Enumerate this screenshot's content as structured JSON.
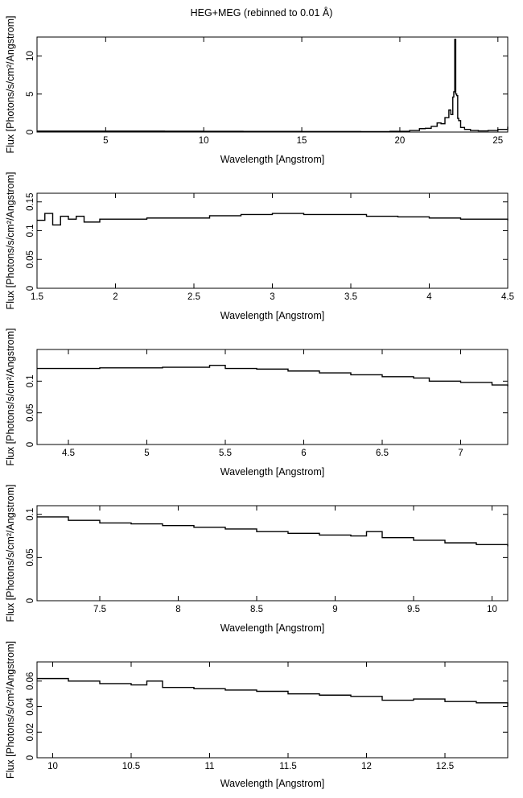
{
  "title": "HEG+MEG (rebinned to 0.01 Å)",
  "chart_data": [
    {
      "type": "line",
      "xlabel": "Wavelength [Angstrom]",
      "ylabel": "Flux [Photons/s/cm²/Angstrom]",
      "xlim": [
        1.5,
        25.5
      ],
      "ylim": [
        0,
        12.5
      ],
      "x_ticks": [
        5,
        10,
        15,
        20,
        25
      ],
      "x_ticklabels": [
        "5",
        "10",
        "15",
        "20",
        "25"
      ],
      "y_ticks": [
        0,
        5,
        10
      ],
      "y_ticklabels": [
        "0",
        "5",
        "10"
      ],
      "series": [
        {
          "x": [
            1.5,
            3,
            5,
            8,
            10,
            12,
            15,
            18,
            19.5,
            20.5,
            21,
            21.3,
            21.6,
            21.9,
            22.1,
            22.3,
            22.5,
            22.6,
            22.7,
            22.75,
            22.8,
            22.85,
            22.9,
            22.95,
            23.0,
            23.1,
            23.3,
            23.6,
            24,
            24.5,
            25,
            25.5
          ],
          "y": [
            0.12,
            0.12,
            0.12,
            0.11,
            0.1,
            0.08,
            0.07,
            0.06,
            0.1,
            0.2,
            0.45,
            0.5,
            0.75,
            1.2,
            1.1,
            1.9,
            2.9,
            2.3,
            4.6,
            5.3,
            12.2,
            5.0,
            4.8,
            1.8,
            1.5,
            0.6,
            0.35,
            0.2,
            0.15,
            0.2,
            0.35,
            0.7
          ]
        }
      ]
    },
    {
      "type": "line",
      "xlabel": "Wavelength [Angstrom]",
      "ylabel": "Flux [Photons/s/cm²/Angstrom]",
      "xlim": [
        1.5,
        4.5
      ],
      "ylim": [
        0,
        0.165
      ],
      "x_ticks": [
        1.5,
        2,
        2.5,
        3,
        3.5,
        4,
        4.5
      ],
      "x_ticklabels": [
        "1.5",
        "2",
        "2.5",
        "3",
        "3.5",
        "4",
        "4.5"
      ],
      "y_ticks": [
        0,
        0.05,
        0.1,
        0.15
      ],
      "y_ticklabels": [
        "0",
        "0.05",
        "0.1",
        "0.15"
      ],
      "series": [
        {
          "x": [
            1.5,
            1.55,
            1.6,
            1.65,
            1.7,
            1.75,
            1.8,
            1.9,
            2.0,
            2.2,
            2.4,
            2.6,
            2.8,
            3.0,
            3.2,
            3.4,
            3.6,
            3.8,
            4.0,
            4.2,
            4.4,
            4.5
          ],
          "y": [
            0.118,
            0.13,
            0.11,
            0.125,
            0.12,
            0.125,
            0.115,
            0.12,
            0.12,
            0.122,
            0.122,
            0.126,
            0.128,
            0.13,
            0.128,
            0.128,
            0.125,
            0.124,
            0.122,
            0.12,
            0.12,
            0.118
          ]
        }
      ]
    },
    {
      "type": "line",
      "xlabel": "Wavelength [Angstrom]",
      "ylabel": "Flux [Photons/s/cm²/Angstrom]",
      "xlim": [
        4.3,
        7.3
      ],
      "ylim": [
        0,
        0.15
      ],
      "x_ticks": [
        4.5,
        5,
        5.5,
        6,
        6.5,
        7
      ],
      "x_ticklabels": [
        "4.5",
        "5",
        "5.5",
        "6",
        "6.5",
        "7"
      ],
      "y_ticks": [
        0,
        0.05,
        0.1
      ],
      "y_ticklabels": [
        "0",
        "0.05",
        "0.1"
      ],
      "series": [
        {
          "x": [
            4.3,
            4.5,
            4.7,
            4.9,
            5.1,
            5.3,
            5.4,
            5.5,
            5.7,
            5.9,
            6.1,
            6.3,
            6.5,
            6.7,
            6.8,
            7.0,
            7.2,
            7.3
          ],
          "y": [
            0.12,
            0.12,
            0.121,
            0.121,
            0.122,
            0.122,
            0.125,
            0.12,
            0.119,
            0.116,
            0.113,
            0.11,
            0.107,
            0.105,
            0.1,
            0.098,
            0.094,
            0.092
          ]
        }
      ]
    },
    {
      "type": "line",
      "xlabel": "Wavelength [Angstrom]",
      "ylabel": "Flux [Photons/s/cm²/Angstrom]",
      "xlim": [
        7.1,
        10.1
      ],
      "ylim": [
        0,
        0.11
      ],
      "x_ticks": [
        7.5,
        8,
        8.5,
        9,
        9.5,
        10
      ],
      "x_ticklabels": [
        "7.5",
        "8",
        "8.5",
        "9",
        "9.5",
        "10"
      ],
      "y_ticks": [
        0,
        0.05,
        0.1
      ],
      "y_ticklabels": [
        "0",
        "0.05",
        "0.1"
      ],
      "series": [
        {
          "x": [
            7.1,
            7.3,
            7.5,
            7.7,
            7.9,
            8.1,
            8.3,
            8.5,
            8.7,
            8.9,
            9.1,
            9.2,
            9.3,
            9.5,
            9.7,
            9.9,
            10.1
          ],
          "y": [
            0.097,
            0.093,
            0.09,
            0.089,
            0.087,
            0.085,
            0.083,
            0.08,
            0.078,
            0.076,
            0.075,
            0.08,
            0.073,
            0.07,
            0.067,
            0.065,
            0.063
          ]
        }
      ]
    },
    {
      "type": "line",
      "xlabel": "Wavelength [Angstrom]",
      "ylabel": "Flux [Photons/s/cm²/Angstrom]",
      "xlim": [
        9.9,
        12.9
      ],
      "ylim": [
        0,
        0.075
      ],
      "x_ticks": [
        10,
        10.5,
        11,
        11.5,
        12,
        12.5
      ],
      "x_ticklabels": [
        "10",
        "10.5",
        "11",
        "11.5",
        "12",
        "12.5"
      ],
      "y_ticks": [
        0,
        0.02,
        0.04,
        0.06
      ],
      "y_ticklabels": [
        "0",
        "0.02",
        "0.04",
        "0.06"
      ],
      "series": [
        {
          "x": [
            9.9,
            10.1,
            10.3,
            10.5,
            10.6,
            10.7,
            10.9,
            11.1,
            11.3,
            11.5,
            11.7,
            11.9,
            12.1,
            12.3,
            12.5,
            12.7,
            12.9
          ],
          "y": [
            0.062,
            0.06,
            0.058,
            0.057,
            0.06,
            0.055,
            0.054,
            0.053,
            0.052,
            0.05,
            0.049,
            0.048,
            0.045,
            0.046,
            0.044,
            0.043,
            0.04
          ]
        }
      ]
    }
  ]
}
